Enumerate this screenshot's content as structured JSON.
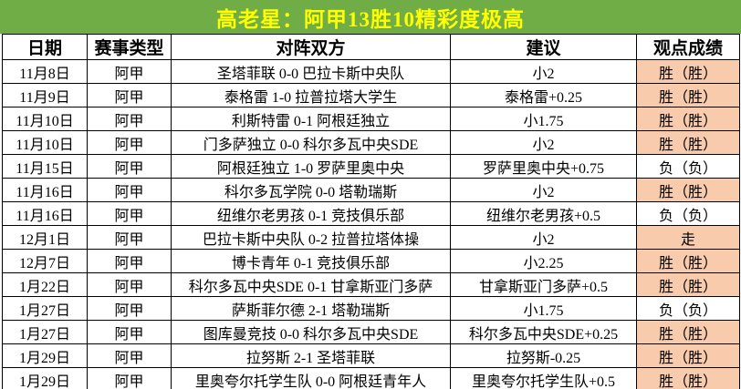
{
  "title": "高老星：阿甲13胜10精彩度极高",
  "colors": {
    "title_bg": "#70AD47",
    "title_text": "#FFFF00",
    "win_cell_bg": "#F8CBAD",
    "win_cell_text": "#FF2D16",
    "loss_cell_text": "#000000",
    "border": "#000000"
  },
  "table": {
    "headers": [
      "日期",
      "赛事类型",
      "对阵双方",
      "建议",
      "观点成绩"
    ],
    "rows": [
      {
        "date": "11月8日",
        "league": "阿甲",
        "match": "圣塔菲联 0-0 巴拉卡斯中央队",
        "suggestion": "小2",
        "result": "胜（胜）",
        "result_type": "win"
      },
      {
        "date": "11月9日",
        "league": "阿甲",
        "match": "泰格雷 1-0 拉普拉塔大学生",
        "suggestion": "泰格雷+0.25",
        "result": "胜（胜）",
        "result_type": "win"
      },
      {
        "date": "11月10日",
        "league": "阿甲",
        "match": "利斯特雷 0-1 阿根廷独立",
        "suggestion": "小1.75",
        "result": "胜（胜）",
        "result_type": "win"
      },
      {
        "date": "11月10日",
        "league": "阿甲",
        "match": "门多萨独立 0-0 科尔多瓦中央SDE",
        "suggestion": "小2",
        "result": "胜（胜）",
        "result_type": "win"
      },
      {
        "date": "11月15日",
        "league": "阿甲",
        "match": "阿根廷独立 1-0 罗萨里奥中央",
        "suggestion": "罗萨里奥中央+0.75",
        "result": "负（负）",
        "result_type": "loss"
      },
      {
        "date": "11月16日",
        "league": "阿甲",
        "match": "科尔多瓦学院 0-0 塔勒瑞斯",
        "suggestion": "小2",
        "result": "胜（胜）",
        "result_type": "win"
      },
      {
        "date": "11月16日",
        "league": "阿甲",
        "match": "纽维尔老男孩 0-1 竞技俱乐部",
        "suggestion": "纽维尔老男孩+0.5",
        "result": "负（负）",
        "result_type": "loss"
      },
      {
        "date": "12月1日",
        "league": "阿甲",
        "match": "巴拉卡斯中央队 0-2 拉普拉塔体操",
        "suggestion": "小2",
        "result": "走",
        "result_type": "push"
      },
      {
        "date": "12月7日",
        "league": "阿甲",
        "match": "博卡青年 0-1 竞技俱乐部",
        "suggestion": "小2.25",
        "result": "胜（胜）",
        "result_type": "win"
      },
      {
        "date": "1月22日",
        "league": "阿甲",
        "match": "科尔多瓦中央SDE 0-1 甘拿斯亚门多萨",
        "suggestion": "甘拿斯亚门多萨+0.5",
        "result": "胜（胜）",
        "result_type": "win"
      },
      {
        "date": "1月27日",
        "league": "阿甲",
        "match": "萨斯菲尔德 2-1 塔勒瑞斯",
        "suggestion": "小1.75",
        "result": "负（负）",
        "result_type": "loss"
      },
      {
        "date": "1月27日",
        "league": "阿甲",
        "match": "图库曼竞技 0-0 科尔多瓦中央SDE",
        "suggestion": "科尔多瓦中央SDE+0.25",
        "result": "胜（胜）",
        "result_type": "win"
      },
      {
        "date": "1月29日",
        "league": "阿甲",
        "match": "拉努斯 2-1 圣塔菲联",
        "suggestion": "拉努斯-0.25",
        "result": "胜（胜）",
        "result_type": "win"
      },
      {
        "date": "1月29日",
        "league": "阿甲",
        "match": "里奥夸尔托学生队 0-0 阿根廷青年人",
        "suggestion": "里奥夸尔托学生队+0.5",
        "result": "胜（胜）",
        "result_type": "win"
      }
    ]
  }
}
